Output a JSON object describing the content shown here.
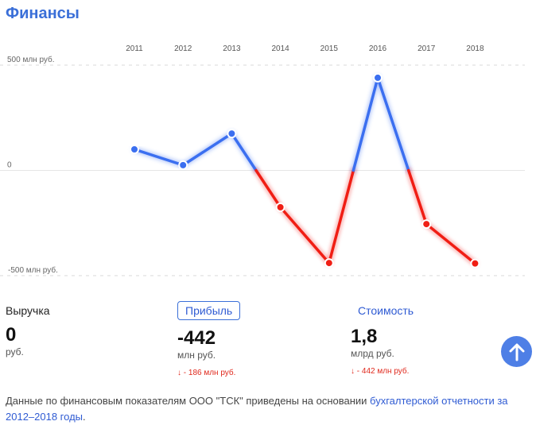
{
  "section": {
    "title": "Финансы"
  },
  "chart_data": {
    "type": "line",
    "categories": [
      "2011",
      "2012",
      "2013",
      "2014",
      "2015",
      "2016",
      "2017",
      "2018"
    ],
    "values": [
      100,
      25,
      175,
      -175,
      -440,
      440,
      -255,
      -442
    ],
    "y_ticks": [
      {
        "value": 500,
        "label": "500 млн руб."
      },
      {
        "value": 0,
        "label": "0"
      },
      {
        "value": -500,
        "label": "-500 млн руб."
      }
    ],
    "ylim": [
      -500,
      500
    ],
    "positive_color": "#3b6ff0",
    "negative_color": "#f01e14"
  },
  "metrics": {
    "revenue": {
      "label": "Выручка",
      "value": "0",
      "unit": "руб."
    },
    "profit": {
      "label": "Прибыль",
      "value": "-442",
      "unit": "млн руб.",
      "delta": "↓ - 186 млн руб."
    },
    "cost": {
      "label": "Стоимость",
      "value": "1,8",
      "unit": "млрд руб.",
      "delta": "↓ - 442 млн руб."
    }
  },
  "footer": {
    "text": "Данные по финансовым показателям ООО \"ТСК\" приведены на основании ",
    "link": "бухгалтерской отчетности за 2012–2018 годы",
    "end": "."
  },
  "icons": {
    "scroll_top": "arrow-up-icon"
  }
}
